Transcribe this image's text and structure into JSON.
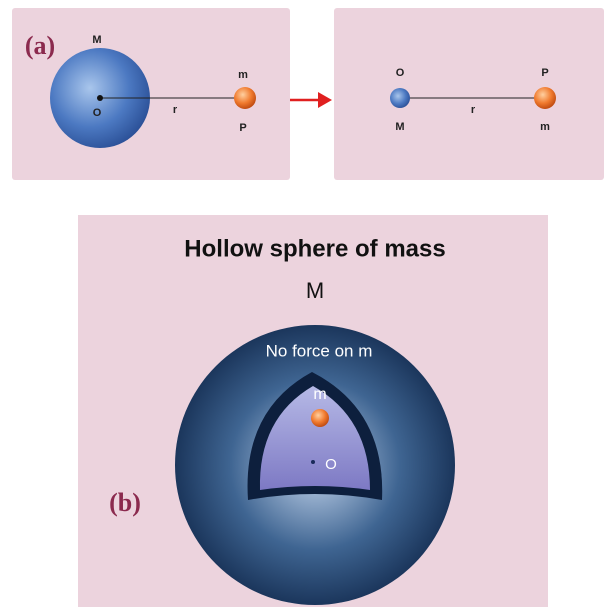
{
  "panel_a": {
    "tag": "(a)",
    "left": {
      "big_mass": "M",
      "center": "O",
      "distance": "r",
      "small_mass": "m",
      "point": "P"
    },
    "right": {
      "center": "O",
      "big_mass": "M",
      "distance": "r",
      "point": "P",
      "small_mass": "m"
    }
  },
  "panel_b": {
    "tag": "(b)",
    "title": "Hollow sphere of mass",
    "mass": "M",
    "note": "No force on m",
    "small_mass": "m",
    "center": "O"
  }
}
